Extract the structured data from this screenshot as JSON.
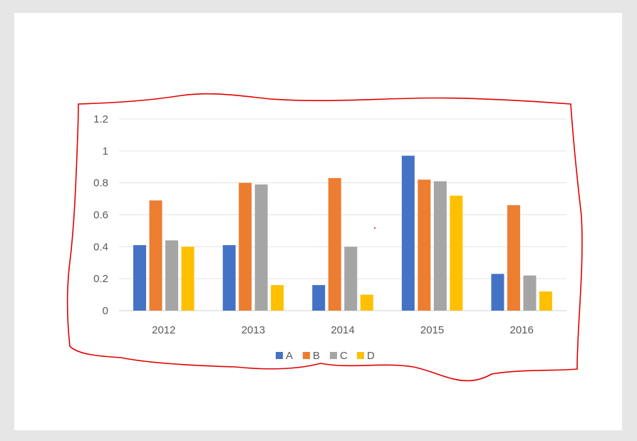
{
  "chart_data": {
    "type": "bar",
    "categories": [
      "2012",
      "2013",
      "2014",
      "2015",
      "2016"
    ],
    "series": [
      {
        "name": "A",
        "color": "#4472c4",
        "values": [
          0.41,
          0.41,
          0.16,
          0.97,
          0.23
        ]
      },
      {
        "name": "B",
        "color": "#ed7d31",
        "values": [
          0.69,
          0.8,
          0.83,
          0.82,
          0.66
        ]
      },
      {
        "name": "C",
        "color": "#a5a5a5",
        "values": [
          0.44,
          0.79,
          0.4,
          0.81,
          0.22
        ]
      },
      {
        "name": "D",
        "color": "#ffc000",
        "values": [
          0.4,
          0.16,
          0.1,
          0.72,
          0.12
        ]
      }
    ],
    "ylim": [
      0,
      1.2
    ],
    "yticks": [
      "0",
      "0.2",
      "0.4",
      "0.6",
      "0.8",
      "1",
      "1.2"
    ],
    "grid": true,
    "legend_position": "bottom",
    "annotation": "hand-drawn red outline around the chart",
    "annotation_color": "#e00000"
  }
}
